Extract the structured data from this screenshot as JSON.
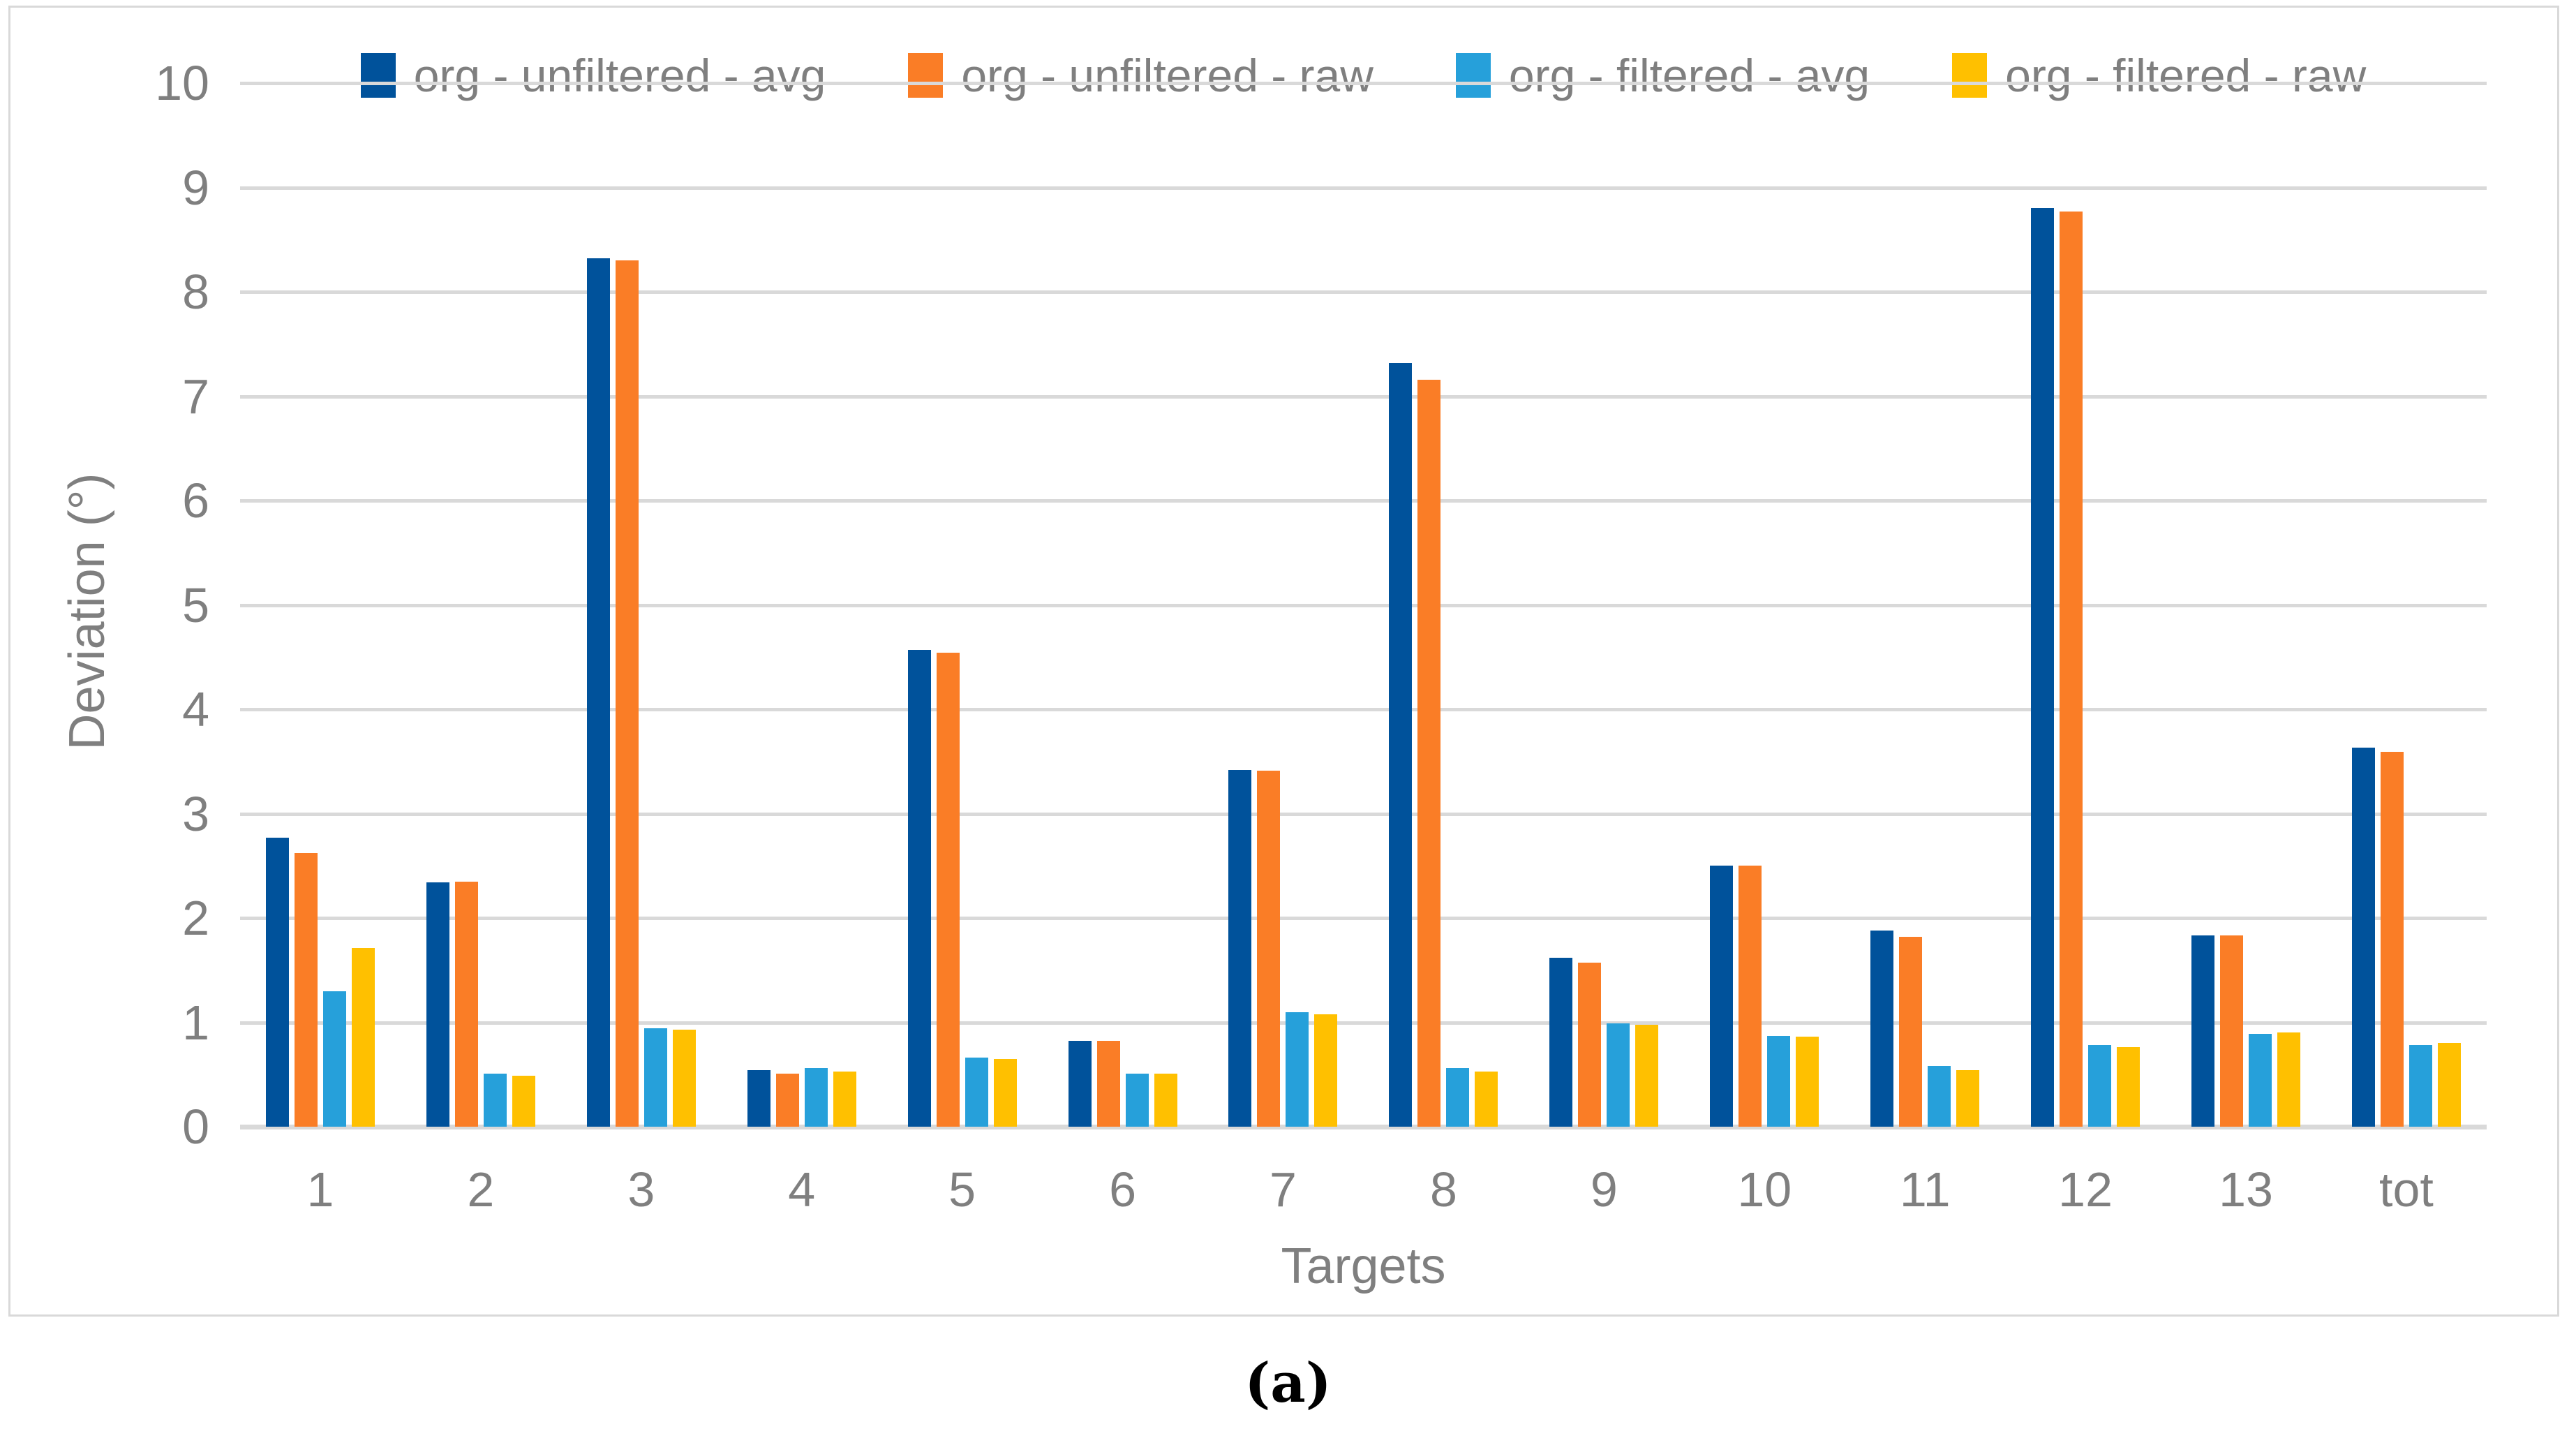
{
  "figure": {
    "caption": "(a)"
  },
  "colors": {
    "background": "#FFFFFF",
    "frame_border": "#D9D9D9",
    "gridline": "#D9D9D9",
    "axis_text": "#7F7F7F",
    "caption_text": "#000000"
  },
  "chart_data": {
    "type": "bar",
    "title": "",
    "xlabel": "Targets",
    "ylabel": "Deviation (°)",
    "ylim": [
      0,
      10
    ],
    "ytick_step": 1,
    "grid": true,
    "legend_position": "top-center",
    "categories": [
      "1",
      "2",
      "3",
      "4",
      "5",
      "6",
      "7",
      "8",
      "9",
      "10",
      "11",
      "12",
      "13",
      "tot"
    ],
    "series": [
      {
        "name": "org - unfiltered - avg",
        "color": "#00529B",
        "values": [
          2.77,
          2.34,
          8.32,
          0.54,
          4.57,
          0.82,
          3.42,
          7.32,
          1.62,
          2.5,
          1.88,
          8.8,
          1.83,
          3.63
        ]
      },
      {
        "name": "org - unfiltered - raw",
        "color": "#FA7D26",
        "values": [
          2.62,
          2.35,
          8.3,
          0.51,
          4.54,
          0.82,
          3.41,
          7.16,
          1.57,
          2.5,
          1.82,
          8.77,
          1.83,
          3.59
        ]
      },
      {
        "name": "org - filtered - avg",
        "color": "#26A0DA",
        "values": [
          1.3,
          0.51,
          0.94,
          0.56,
          0.66,
          0.51,
          1.1,
          0.56,
          0.99,
          0.87,
          0.58,
          0.78,
          0.89,
          0.78
        ]
      },
      {
        "name": "org - filtered - raw",
        "color": "#FFC000",
        "values": [
          1.71,
          0.49,
          0.93,
          0.53,
          0.65,
          0.51,
          1.08,
          0.53,
          0.98,
          0.86,
          0.54,
          0.76,
          0.9,
          0.8
        ]
      }
    ]
  }
}
